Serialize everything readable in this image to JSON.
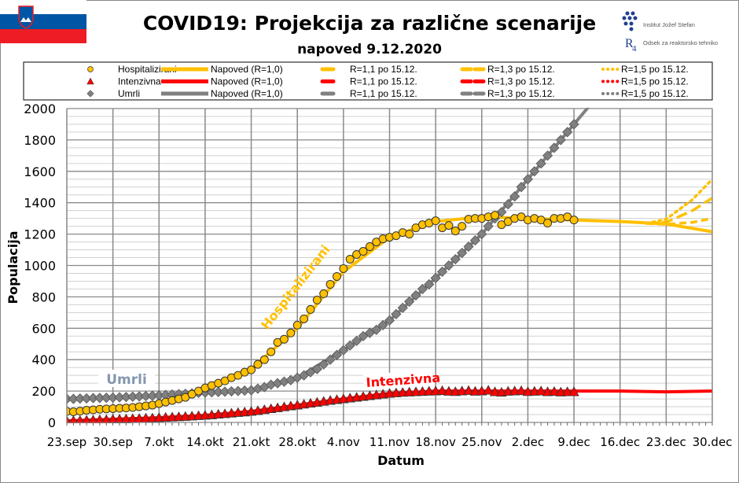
{
  "header": {
    "title": "COVID19: Projekcija za različne scenarije",
    "subtitle": "napoved 9.12.2020",
    "logo_ijs": "Institut Jožef Stefan",
    "logo_r4": "Odsek za reaktorsko tehniko",
    "flag": "Slovenia"
  },
  "colors": {
    "hosp": "#FFC000",
    "icu": "#FF0000",
    "deaths": "#808080"
  },
  "legend": {
    "rows": [
      {
        "series": "Hospitalizirani",
        "marker": "circle",
        "color": "#FFC000",
        "labels": [
          "Napoved (R=1,0)",
          "R=1,1 po 15.12.",
          "R=1,3 po 15.12.",
          "R=1,5 po 15.12."
        ]
      },
      {
        "series": "Intenzivna",
        "marker": "triangle",
        "color": "#FF0000",
        "labels": [
          "Napoved (R=1,0)",
          "R=1,1 po 15.12.",
          "R=1,3 po 15.12.",
          "R=1,5 po 15.12."
        ]
      },
      {
        "series": "Umrli",
        "marker": "diamond",
        "color": "#808080",
        "labels": [
          "Napoved (R=1,0)",
          "R=1,1 po 15.12.",
          "R=1,3 po 15.12.",
          "R=1,5 po 15.12."
        ]
      }
    ]
  },
  "chart_data": {
    "type": "line",
    "xlabel": "Datum",
    "ylabel": "Populacija",
    "ylim": [
      0,
      2000
    ],
    "yticks": [
      0,
      200,
      400,
      600,
      800,
      1000,
      1200,
      1400,
      1600,
      1800,
      2000
    ],
    "x_start": "23.sep",
    "x_end": "30.dec",
    "xlim_days": [
      0,
      98
    ],
    "xtick_labels": [
      "23.sep",
      "30.sep",
      "7.okt",
      "14.okt",
      "21.okt",
      "28.okt",
      "4.nov",
      "11.nov",
      "18.nov",
      "25.nov",
      "2.dec",
      "9.dec",
      "16.dec",
      "23.dec",
      "30.dec"
    ],
    "grid": true,
    "annotations": [
      "Hospitalizirani",
      "Umrli",
      "Intenzivna"
    ],
    "observed": {
      "Hospitalizirani": [
        70,
        68,
        72,
        78,
        80,
        84,
        86,
        88,
        90,
        92,
        95,
        100,
        105,
        110,
        120,
        130,
        140,
        150,
        160,
        180,
        200,
        220,
        235,
        250,
        265,
        285,
        300,
        320,
        335,
        370,
        400,
        450,
        510,
        530,
        570,
        620,
        660,
        720,
        780,
        820,
        880,
        930,
        980,
        1040,
        1070,
        1090,
        1120,
        1150,
        1170,
        1180,
        1190,
        1210,
        1200,
        1240,
        1260,
        1270,
        1285,
        1240,
        1255,
        1220,
        1250,
        1295,
        1300,
        1300,
        1310,
        1320,
        1260,
        1280,
        1300,
        1310,
        1290,
        1300,
        1290,
        1270,
        1300,
        1300,
        1310,
        1290
      ],
      "Intenzivna": [
        10,
        11,
        12,
        14,
        15,
        17,
        18,
        20,
        21,
        22,
        24,
        25,
        27,
        28,
        30,
        32,
        34,
        36,
        38,
        40,
        43,
        45,
        48,
        52,
        55,
        59,
        63,
        66,
        70,
        75,
        81,
        87,
        93,
        99,
        105,
        110,
        116,
        122,
        128,
        134,
        140,
        145,
        150,
        155,
        160,
        165,
        170,
        175,
        180,
        185,
        188,
        191,
        193,
        195,
        197,
        199,
        200,
        202,
        198,
        196,
        200,
        203,
        198,
        200,
        205,
        195,
        192,
        198,
        200,
        202,
        196,
        198,
        200,
        195,
        197,
        193,
        195,
        195
      ],
      "Umrli": [
        150,
        150,
        152,
        153,
        155,
        156,
        157,
        158,
        160,
        162,
        164,
        166,
        168,
        170,
        172,
        175,
        178,
        180,
        182,
        185,
        188,
        190,
        192,
        194,
        196,
        198,
        200,
        203,
        205,
        215,
        225,
        240,
        250,
        260,
        270,
        285,
        300,
        320,
        340,
        370,
        400,
        430,
        460,
        490,
        520,
        550,
        570,
        590,
        620,
        650,
        690,
        730,
        770,
        810,
        850,
        880,
        920,
        960,
        1000,
        1040,
        1080,
        1120,
        1160,
        1200,
        1250,
        1300,
        1340,
        1390,
        1440,
        1500,
        1550,
        1600,
        1650,
        1700,
        1750,
        1800,
        1850,
        1900
      ]
    },
    "forecast": {
      "Hospitalizirani": {
        "R=1,0": [
          [
            0,
            70
          ],
          [
            7,
            85
          ],
          [
            14,
            130
          ],
          [
            21,
            210
          ],
          [
            28,
            340
          ],
          [
            35,
            600
          ],
          [
            42,
            960
          ],
          [
            49,
            1180
          ],
          [
            56,
            1280
          ],
          [
            63,
            1310
          ],
          [
            70,
            1300
          ],
          [
            77,
            1290
          ],
          [
            84,
            1280
          ],
          [
            91,
            1265
          ],
          [
            98,
            1215
          ]
        ],
        "R=1,1": [
          [
            88,
            1268
          ],
          [
            91,
            1262
          ],
          [
            95,
            1275
          ],
          [
            98,
            1300
          ]
        ],
        "R=1,3": [
          [
            88,
            1268
          ],
          [
            91,
            1275
          ],
          [
            95,
            1350
          ],
          [
            98,
            1430
          ]
        ],
        "R=1,5": [
          [
            88,
            1268
          ],
          [
            91,
            1295
          ],
          [
            95,
            1420
          ],
          [
            98,
            1550
          ]
        ]
      },
      "Intenzivna": {
        "R=1,0": [
          [
            0,
            10
          ],
          [
            7,
            20
          ],
          [
            14,
            30
          ],
          [
            21,
            45
          ],
          [
            28,
            70
          ],
          [
            35,
            110
          ],
          [
            42,
            150
          ],
          [
            49,
            185
          ],
          [
            56,
            200
          ],
          [
            63,
            200
          ],
          [
            70,
            200
          ],
          [
            77,
            200
          ],
          [
            84,
            200
          ],
          [
            91,
            195
          ],
          [
            98,
            200
          ]
        ]
      },
      "Umrli": {
        "R=1,0": [
          [
            0,
            150
          ],
          [
            7,
            158
          ],
          [
            14,
            172
          ],
          [
            21,
            190
          ],
          [
            28,
            205
          ],
          [
            35,
            285
          ],
          [
            42,
            460
          ],
          [
            49,
            650
          ],
          [
            56,
            920
          ],
          [
            63,
            1200
          ],
          [
            70,
            1550
          ],
          [
            77,
            1900
          ],
          [
            84,
            2250
          ]
        ]
      }
    }
  }
}
